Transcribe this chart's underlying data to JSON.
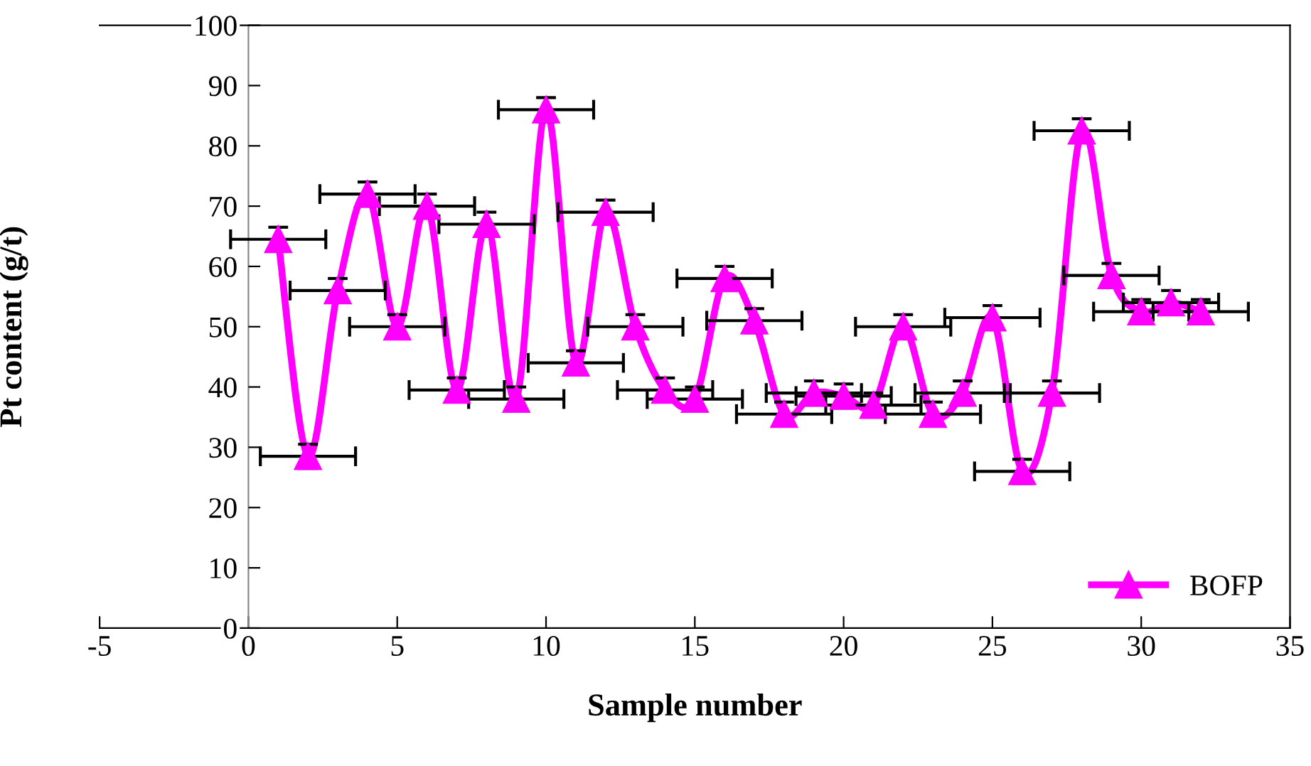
{
  "chart_data": {
    "type": "line",
    "xlabel": "Sample number",
    "ylabel": "Pt content (g/t)",
    "x": [
      1,
      2,
      3,
      4,
      5,
      6,
      7,
      8,
      9,
      10,
      11,
      12,
      13,
      14,
      15,
      16,
      17,
      18,
      19,
      20,
      21,
      22,
      23,
      24,
      25,
      26,
      27,
      28,
      29,
      30,
      31,
      32
    ],
    "series": [
      {
        "name": "BOFP",
        "color": "#ff00ff",
        "values": [
          64.5,
          28.5,
          56,
          72,
          50,
          70,
          39.5,
          67,
          38,
          86,
          44,
          69,
          50,
          39.5,
          38,
          58,
          51,
          35.5,
          39,
          38.5,
          37,
          50,
          35.5,
          39,
          51.5,
          26,
          39,
          82.5,
          58.5,
          52.5,
          54,
          52.5
        ],
        "errors": [
          2,
          2,
          2,
          2,
          2,
          2,
          2,
          2,
          2,
          2,
          2,
          2,
          2,
          2,
          2,
          2,
          2,
          2,
          2,
          2,
          2,
          2,
          2,
          2,
          2,
          2,
          2,
          2,
          2,
          2,
          2,
          2
        ],
        "xerrors": [
          1.6,
          1.6,
          1.6,
          1.6,
          1.6,
          1.6,
          1.6,
          1.6,
          1.6,
          1.6,
          1.6,
          1.6,
          1.6,
          1.6,
          1.6,
          1.6,
          1.6,
          1.6,
          1.6,
          1.6,
          1.6,
          1.6,
          1.6,
          1.6,
          1.6,
          1.6,
          1.6,
          1.6,
          1.6,
          1.6,
          1.6,
          1.6
        ]
      }
    ],
    "xlim": [
      -5,
      35
    ],
    "xticks": [
      -5,
      0,
      5,
      10,
      15,
      20,
      25,
      30,
      35
    ],
    "ylim": [
      0,
      100
    ],
    "yticks": [
      0,
      10,
      20,
      30,
      40,
      50,
      60,
      70,
      80,
      90,
      100
    ],
    "grid": false,
    "legend": "bottom right",
    "marker": "triangle",
    "line_style": "solid"
  }
}
